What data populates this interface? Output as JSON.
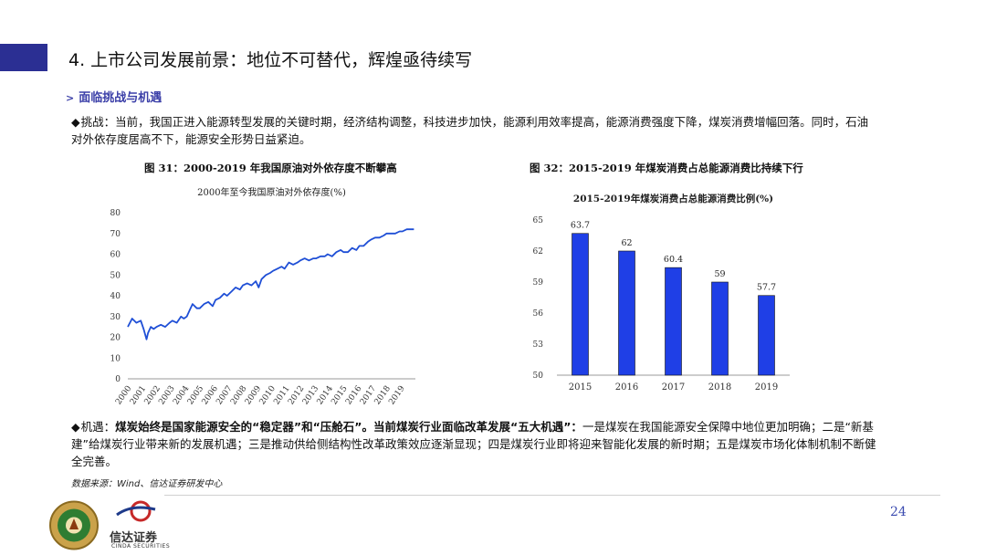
{
  "colors": {
    "accent": "#2b2f93",
    "line": "#1f4fd6",
    "bar": "#1f3fe6",
    "title_text": "#3b3fa8",
    "page_num": "#3b4bb0"
  },
  "header": {
    "title": "4. 上市公司发展前景：地位不可替代，辉煌亟待续写"
  },
  "section": {
    "chevron": ">",
    "heading": "面临挑战与机遇"
  },
  "challenge": {
    "bullet": "◆",
    "lead": "挑战：",
    "text": "当前，我国正进入能源转型发展的关键时期，经济结构调整，科技进步加快，能源利用效率提高，能源消费强度下降，煤炭消费增幅回落。同时，石油对外依存度居高不下，能源安全形势日益紧迫。"
  },
  "opportunity": {
    "bullet": "◆",
    "lead": "机遇：",
    "bold_text": "煤炭始终是国家能源安全的“稳定器”和“压舱石”。当前煤炭行业面临改革发展“五大机遇”：",
    "text": "一是煤炭在我国能源安全保障中地位更加明确；二是“新基建”给煤炭行业带来新的发展机遇；三是推动供给侧结构性改革政策效应逐渐显现；四是煤炭行业即将迎来智能化发展的新时期；五是煤炭市场化体制机制不断健全完善。"
  },
  "source": "数据来源：Wind、信达证券研发中心",
  "footer": {
    "page_number": "24",
    "logo_cn": "信达证券",
    "logo_en": "CINDA SECURITIES"
  },
  "chart_data": [
    {
      "type": "line",
      "caption": "图 31：2000-2019 年我国原油对外依存度不断攀高",
      "title": "2000年至今我国原油对外依存度(%)",
      "xlabel": "",
      "ylabel": "",
      "ylim": [
        0,
        80
      ],
      "yticks": [
        0,
        10,
        20,
        30,
        40,
        50,
        60,
        70,
        80
      ],
      "xticks": [
        "2000",
        "2001",
        "2002",
        "2003",
        "2004",
        "2005",
        "2006",
        "2007",
        "2008",
        "2009",
        "2010",
        "2011",
        "2012",
        "2013",
        "2014",
        "2015",
        "2016",
        "2017",
        "2018",
        "2019"
      ],
      "grid": false,
      "x": [
        2000.0,
        2000.3,
        2000.6,
        2000.9,
        2001.1,
        2001.3,
        2001.4,
        2001.6,
        2001.8,
        2002.0,
        2002.3,
        2002.6,
        2002.9,
        2003.1,
        2003.4,
        2003.7,
        2003.9,
        2004.1,
        2004.3,
        2004.5,
        2004.8,
        2005.0,
        2005.3,
        2005.6,
        2005.9,
        2006.1,
        2006.4,
        2006.7,
        2006.9,
        2007.2,
        2007.5,
        2007.8,
        2008.0,
        2008.3,
        2008.6,
        2008.9,
        2009.1,
        2009.3,
        2009.6,
        2009.9,
        2010.1,
        2010.4,
        2010.7,
        2010.9,
        2011.2,
        2011.5,
        2011.8,
        2012.0,
        2012.3,
        2012.6,
        2012.9,
        2013.1,
        2013.4,
        2013.7,
        2013.9,
        2014.2,
        2014.5,
        2014.8,
        2015.0,
        2015.3,
        2015.6,
        2015.9,
        2016.1,
        2016.4,
        2016.7,
        2016.9,
        2017.2,
        2017.5,
        2017.8,
        2018.0,
        2018.3,
        2018.6,
        2018.9,
        2019.1,
        2019.4,
        2019.7,
        2019.9
      ],
      "values": [
        25,
        29,
        27,
        28,
        24,
        19,
        22,
        25,
        24,
        25,
        26,
        25,
        27,
        28,
        27,
        30,
        29,
        30,
        33,
        36,
        34,
        34,
        36,
        37,
        35,
        38,
        39,
        41,
        40,
        42,
        44,
        43,
        45,
        46,
        45,
        47,
        44,
        48,
        50,
        51,
        52,
        53,
        54,
        53,
        56,
        55,
        56,
        57,
        58,
        57,
        58,
        58,
        59,
        59,
        60,
        59,
        61,
        62,
        61,
        61,
        63,
        62,
        64,
        64,
        66,
        67,
        68,
        68,
        69,
        70,
        70,
        70,
        71,
        71,
        72,
        72,
        72
      ]
    },
    {
      "type": "bar",
      "caption": "图 32：2015-2019 年煤炭消费占总能源消费比持续下行",
      "title": "2015-2019年煤炭消费占总能源消费比例(%)",
      "xlabel": "",
      "ylabel": "",
      "ylim": [
        50,
        65
      ],
      "yticks": [
        50,
        53,
        56,
        59,
        62,
        65
      ],
      "categories": [
        "2015",
        "2016",
        "2017",
        "2018",
        "2019"
      ],
      "values": [
        63.7,
        62,
        60.4,
        59,
        57.7
      ],
      "data_labels": [
        "63.7",
        "62",
        "60.4",
        "59",
        "57.7"
      ],
      "grid": false
    }
  ]
}
